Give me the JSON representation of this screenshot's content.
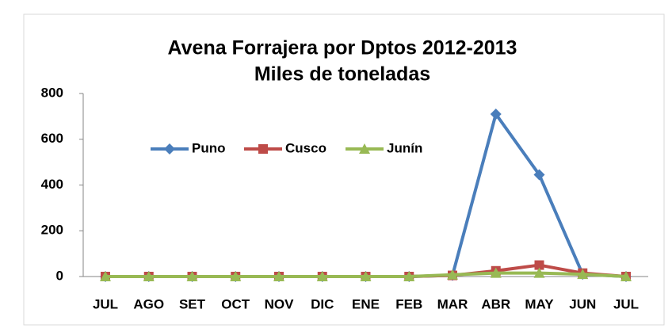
{
  "chart_data": {
    "type": "line",
    "title": "Avena Forrajera por Dptos 2012-2013",
    "subtitle": "Miles de toneladas",
    "categories": [
      "JUL",
      "AGO",
      "SET",
      "OCT",
      "NOV",
      "DIC",
      "ENE",
      "FEB",
      "MAR",
      "ABR",
      "MAY",
      "JUN",
      "JUL"
    ],
    "series": [
      {
        "name": "Puno",
        "color": "#4a7ebb",
        "marker": "diamond",
        "values": [
          0,
          0,
          0,
          0,
          0,
          0,
          0,
          0,
          5,
          710,
          445,
          10,
          0
        ]
      },
      {
        "name": "Cusco",
        "color": "#be4b48",
        "marker": "square",
        "values": [
          0,
          0,
          0,
          0,
          0,
          0,
          0,
          0,
          5,
          25,
          50,
          15,
          0
        ]
      },
      {
        "name": "Junín",
        "color": "#98b954",
        "marker": "triangle",
        "values": [
          0,
          0,
          0,
          0,
          0,
          0,
          0,
          0,
          8,
          15,
          15,
          10,
          0
        ]
      }
    ],
    "ylim": [
      0,
      800
    ],
    "yticks": [
      0,
      200,
      400,
      600,
      800
    ],
    "grid": false,
    "legend": "top-left"
  }
}
